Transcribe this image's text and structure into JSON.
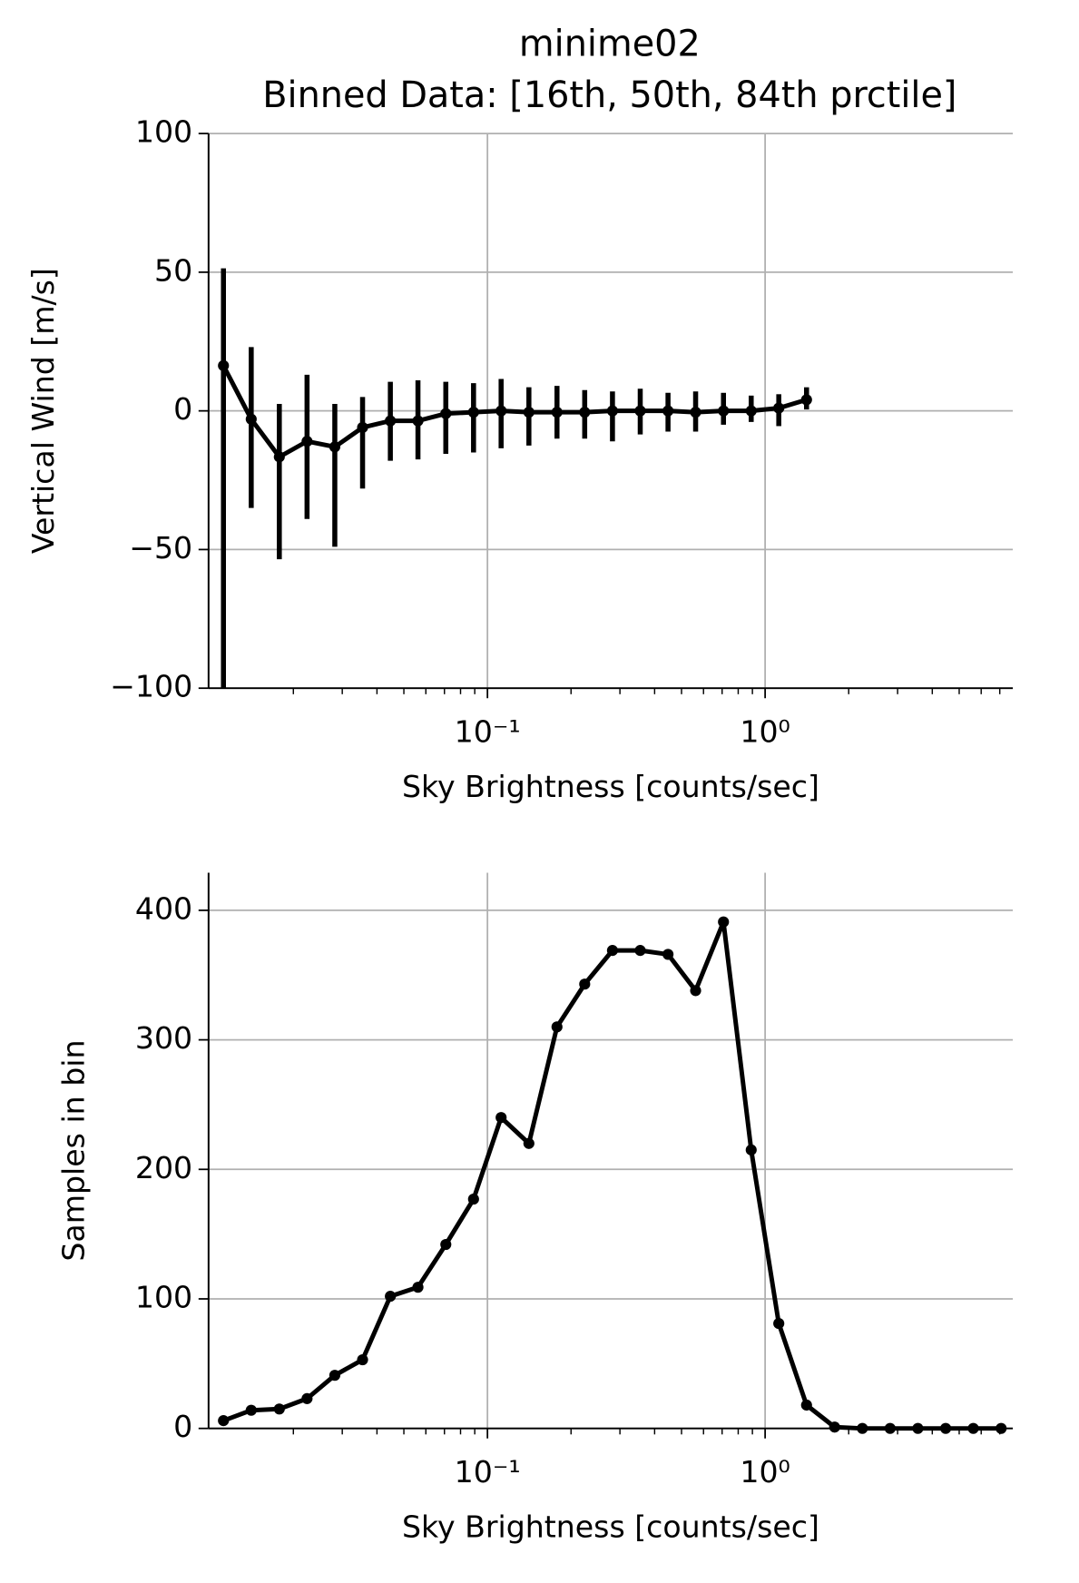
{
  "chart_data": [
    {
      "type": "line",
      "title": "minime02",
      "subtitle": "Binned Data: [16th, 50th, 84th prctile]",
      "xlabel": "Sky Brightness [counts/sec]",
      "ylabel": "Vertical Wind [m/s]",
      "xscale": "log",
      "xlim": [
        0.0099,
        7.8
      ],
      "xticks": [
        {
          "value": 0.1,
          "label": "10⁻¹"
        },
        {
          "value": 1,
          "label": "10⁰"
        }
      ],
      "xminor_ticks": [
        0.02,
        0.03,
        0.04,
        0.05,
        0.06,
        0.07,
        0.08,
        0.09,
        0.2,
        0.3,
        0.4,
        0.5,
        0.6,
        0.7,
        0.8,
        0.9,
        2,
        3,
        4,
        5,
        6,
        7
      ],
      "ylim": [
        -100,
        100
      ],
      "yticks": [
        {
          "value": -100,
          "label": "−100"
        },
        {
          "value": -50,
          "label": "−50"
        },
        0,
        50,
        100
      ],
      "grid": true,
      "color": "#000000",
      "x": [
        0.0112,
        0.0141,
        0.0178,
        0.0224,
        0.0282,
        0.0355,
        0.0447,
        0.0562,
        0.0708,
        0.0891,
        0.112,
        0.141,
        0.178,
        0.224,
        0.282,
        0.355,
        0.447,
        0.562,
        0.708,
        0.891,
        1.12,
        1.41
      ],
      "values": [
        16.3,
        -3,
        -16.6,
        -11,
        -13,
        -6,
        -3.6,
        -3.6,
        -1,
        -0.5,
        0,
        -0.5,
        -0.5,
        -0.5,
        0,
        0,
        0,
        -0.5,
        0,
        0,
        1,
        4
      ],
      "lower": [
        -100,
        -35,
        -53.5,
        -39,
        -49,
        -28,
        -18,
        -17.5,
        -15.5,
        -15,
        -13.5,
        -12.5,
        -10,
        -10,
        -11,
        -8.5,
        -7.5,
        -7.5,
        -5,
        -4,
        -5.5,
        0.5
      ],
      "upper": [
        51.4,
        23,
        2.5,
        13,
        2.5,
        5,
        10.5,
        11,
        10.5,
        10,
        11.5,
        8.5,
        9,
        7.5,
        7,
        8,
        6.5,
        7,
        6.5,
        5.5,
        6,
        8.5
      ]
    },
    {
      "type": "line",
      "xlabel": "Sky Brightness [counts/sec]",
      "ylabel": "Samples in bin",
      "xscale": "log",
      "xlim": [
        0.0099,
        7.8
      ],
      "xticks": [
        {
          "value": 0.1,
          "label": "10⁻¹"
        },
        {
          "value": 1,
          "label": "10⁰"
        }
      ],
      "xminor_ticks": [
        0.02,
        0.03,
        0.04,
        0.05,
        0.06,
        0.07,
        0.08,
        0.09,
        0.2,
        0.3,
        0.4,
        0.5,
        0.6,
        0.7,
        0.8,
        0.9,
        2,
        3,
        4,
        5,
        6,
        7
      ],
      "ylim": [
        0,
        429
      ],
      "yticks": [
        0,
        100,
        200,
        300,
        400
      ],
      "grid": true,
      "color": "#000000",
      "x": [
        0.0112,
        0.0141,
        0.0178,
        0.0224,
        0.0282,
        0.0355,
        0.0447,
        0.0562,
        0.0708,
        0.0891,
        0.112,
        0.141,
        0.178,
        0.224,
        0.282,
        0.355,
        0.447,
        0.562,
        0.708,
        0.891,
        1.12,
        1.41,
        1.78,
        2.24,
        2.82,
        3.55,
        4.47,
        5.62,
        7.08
      ],
      "values": [
        6,
        14,
        15,
        23,
        41,
        53,
        102,
        109,
        142,
        177,
        240,
        220,
        310,
        343,
        369,
        369,
        366,
        338,
        391,
        215,
        81,
        18,
        1,
        0,
        0,
        0,
        0,
        0,
        0
      ]
    }
  ]
}
